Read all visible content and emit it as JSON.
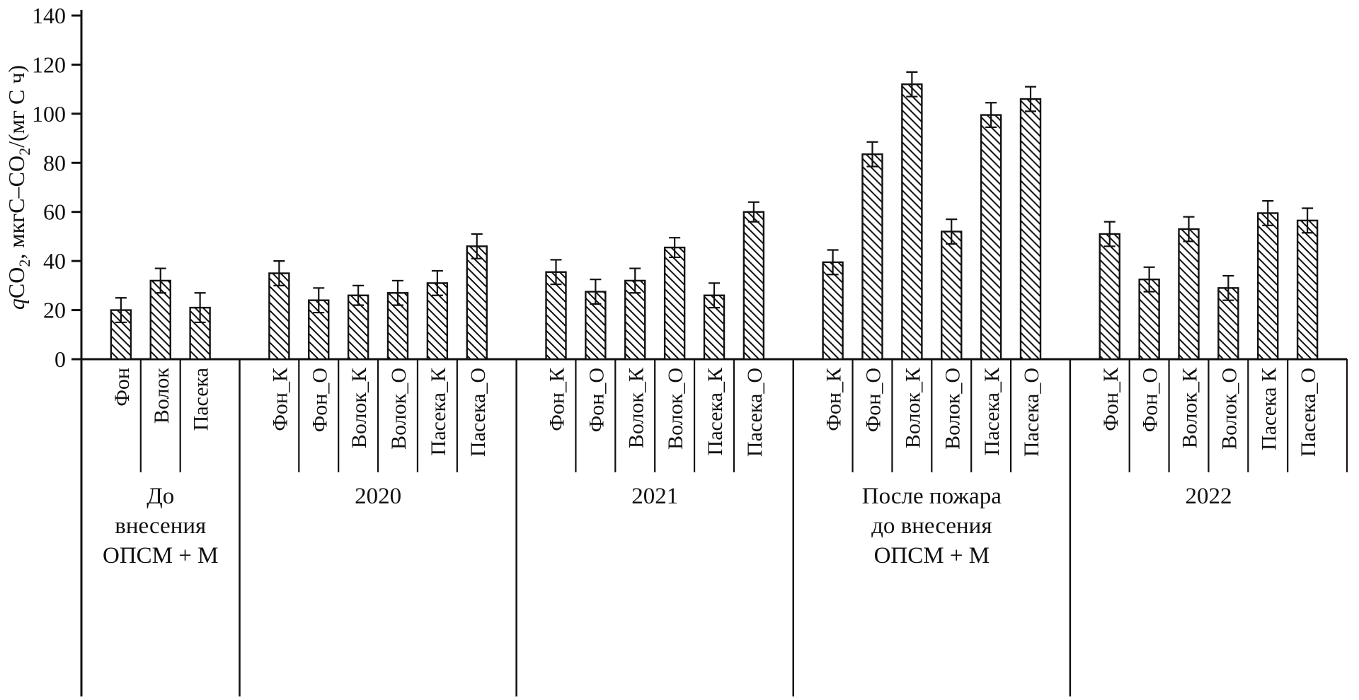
{
  "chart_data": {
    "type": "bar",
    "ylabel_segments": [
      {
        "text": "q",
        "style": "italic"
      },
      {
        "text": "CO",
        "style": "normal"
      },
      {
        "text": "2",
        "style": "sub"
      },
      {
        "text": ", мкгС–CO",
        "style": "normal"
      },
      {
        "text": "2",
        "style": "sub"
      },
      {
        "text": "/(мг С ч)",
        "style": "normal"
      }
    ],
    "ylim": [
      0,
      140
    ],
    "yticks": [
      0,
      20,
      40,
      60,
      80,
      100,
      120,
      140
    ],
    "grid": false,
    "legend": "none",
    "bar_fill": "#ffffff",
    "line_color": "#111111",
    "hatch": "diagonal",
    "groups": [
      {
        "label_lines": [
          "До",
          "внесения",
          "ОПСМ + М"
        ],
        "bars": [
          {
            "label": "Фон",
            "value": 20,
            "error": 5
          },
          {
            "label": "Волок",
            "value": 32,
            "error": 5
          },
          {
            "label": "Пасека",
            "value": 21,
            "error": 6
          }
        ]
      },
      {
        "label_lines": [
          "2020"
        ],
        "bars": [
          {
            "label": "Фон_К",
            "value": 35,
            "error": 5
          },
          {
            "label": "Фон_О",
            "value": 24,
            "error": 5
          },
          {
            "label": "Волок_К",
            "value": 26,
            "error": 4
          },
          {
            "label": "Волок_О",
            "value": 27,
            "error": 5
          },
          {
            "label": "Пасека_К",
            "value": 31,
            "error": 5
          },
          {
            "label": "Пасека_О",
            "value": 46,
            "error": 5
          }
        ]
      },
      {
        "label_lines": [
          "2021"
        ],
        "bars": [
          {
            "label": "Фон_К",
            "value": 35.5,
            "error": 5
          },
          {
            "label": "Фон_О",
            "value": 27.5,
            "error": 5
          },
          {
            "label": "Волок_К",
            "value": 32,
            "error": 5
          },
          {
            "label": "Волок_О",
            "value": 45.5,
            "error": 4
          },
          {
            "label": "Пасека_К",
            "value": 26,
            "error": 5
          },
          {
            "label": "Пасека_О",
            "value": 60,
            "error": 4
          }
        ]
      },
      {
        "label_lines": [
          "После пожара",
          "до внесения",
          "ОПСМ + М"
        ],
        "bars": [
          {
            "label": "Фон_К",
            "value": 39.5,
            "error": 5
          },
          {
            "label": "Фон_О",
            "value": 83.5,
            "error": 5
          },
          {
            "label": "Волок_К",
            "value": 112,
            "error": 5
          },
          {
            "label": "Волок_О",
            "value": 52,
            "error": 5
          },
          {
            "label": "Пасека_К",
            "value": 99.5,
            "error": 5
          },
          {
            "label": "Пасека_О",
            "value": 106,
            "error": 5
          }
        ]
      },
      {
        "label_lines": [
          "2022"
        ],
        "bars": [
          {
            "label": "Фон_К",
            "value": 51,
            "error": 5
          },
          {
            "label": "Фон_О",
            "value": 32.5,
            "error": 5
          },
          {
            "label": "Волок_К",
            "value": 53,
            "error": 5
          },
          {
            "label": "Волок_О",
            "value": 29,
            "error": 5
          },
          {
            "label": "Пасека К",
            "value": 59.5,
            "error": 5
          },
          {
            "label": "Пасека_О",
            "value": 56.5,
            "error": 5
          }
        ]
      }
    ]
  }
}
